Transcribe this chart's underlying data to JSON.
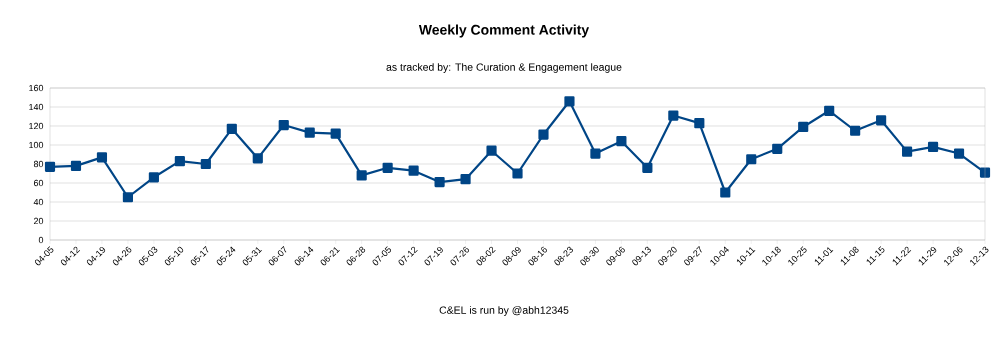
{
  "chart_data": {
    "type": "line",
    "title": "Weekly Comment Activity",
    "subtitle": "as tracked by: The Curation & Engagement league",
    "annotations": [
      "C&EL is run by @abh12345"
    ],
    "categories": [
      "04-05",
      "04-12",
      "04-19",
      "04-26",
      "05-03",
      "05-10",
      "05-17",
      "05-24",
      "05-31",
      "06-07",
      "06-14",
      "06-21",
      "06-28",
      "07-05",
      "07-12",
      "07-19",
      "07-26",
      "08-02",
      "08-09",
      "08-16",
      "08-23",
      "08-30",
      "09-06",
      "09-13",
      "09-20",
      "09-27",
      "10-04",
      "10-11",
      "10-18",
      "10-25",
      "11-01",
      "11-08",
      "11-15",
      "11-22",
      "11-29",
      "12-06",
      "12-13"
    ],
    "values": [
      77,
      78,
      87,
      45,
      66,
      83,
      80,
      117,
      86,
      121,
      113,
      112,
      68,
      76,
      73,
      61,
      64,
      94,
      70,
      111,
      146,
      91,
      104,
      76,
      131,
      123,
      50,
      85,
      96,
      119,
      136,
      115,
      126,
      93,
      98,
      91,
      71
    ],
    "color": "#004586",
    "ylim": [
      0,
      160
    ],
    "yticks": [
      0,
      20,
      40,
      60,
      80,
      100,
      120,
      140,
      160
    ],
    "grid": "y",
    "marker": "square",
    "line_style": "solid"
  }
}
